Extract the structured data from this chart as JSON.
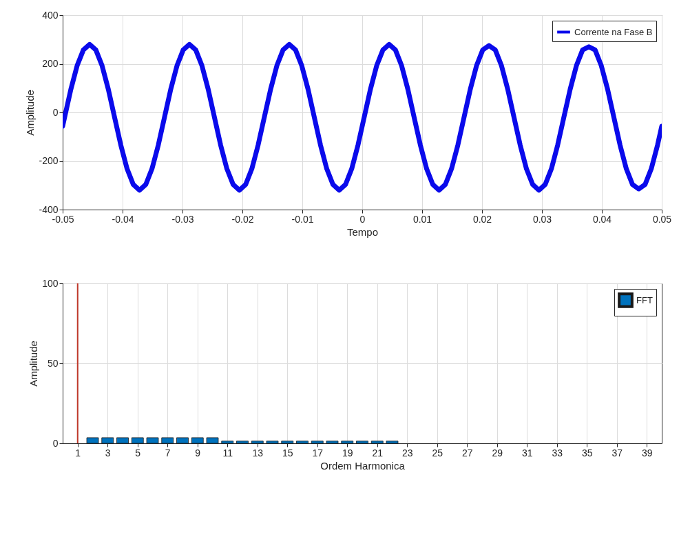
{
  "chart_data": [
    {
      "type": "line",
      "xlabel": "Tempo",
      "ylabel": "Amplitude",
      "xlim": [
        -0.05,
        0.05
      ],
      "ylim": [
        -400,
        400
      ],
      "xticks": [
        -0.05,
        -0.04,
        -0.03,
        -0.02,
        -0.01,
        0,
        0.01,
        0.02,
        0.03,
        0.04,
        0.05
      ],
      "yticks": [
        -400,
        -200,
        0,
        200,
        400
      ],
      "grid": true,
      "legend": "top right",
      "series": [
        {
          "name": "Corrente na Fase B",
          "color": "#0a0aeb",
          "x": [
            -0.05,
            -0.04967,
            -0.04863,
            -0.04759,
            -0.04654,
            -0.0455,
            -0.04446,
            -0.04342,
            -0.04238,
            -0.04134,
            -0.04029,
            -0.03925,
            -0.03821,
            -0.03717,
            -0.03613,
            -0.03509,
            -0.03404,
            -0.033,
            -0.03196,
            -0.03092,
            -0.02988,
            -0.02884,
            -0.02779,
            -0.02675,
            -0.02571,
            -0.02467,
            -0.02363,
            -0.02259,
            -0.02154,
            -0.0205,
            -0.01946,
            -0.01842,
            -0.01738,
            -0.01634,
            -0.01529,
            -0.01425,
            -0.01321,
            -0.01217,
            -0.01113,
            -0.01009,
            -0.00904,
            -0.008,
            -0.00696,
            -0.00592,
            -0.00488,
            -0.00384,
            -0.00279,
            -0.00175,
            -0.00071,
            0.00033,
            0.00137,
            0.00241,
            0.00346,
            0.0045,
            0.00554,
            0.00658,
            0.00762,
            0.00866,
            0.00971,
            0.01075,
            0.01179,
            0.01283,
            0.01387,
            0.01491,
            0.01596,
            0.017,
            0.01804,
            0.01908,
            0.02012,
            0.02116,
            0.02221,
            0.02325,
            0.02429,
            0.02533,
            0.02637,
            0.02741,
            0.02846,
            0.0295,
            0.03054,
            0.03158,
            0.03262,
            0.03366,
            0.03471,
            0.03575,
            0.03679,
            0.03783,
            0.03887,
            0.03991,
            0.04096,
            0.042,
            0.04304,
            0.04408,
            0.04512,
            0.04616,
            0.04721,
            0.04825,
            0.04929,
            0.05
          ],
          "values": [
            -57,
            -20,
            95,
            192,
            257,
            280,
            257,
            192,
            95,
            -20,
            -135,
            -232,
            -297,
            -320,
            -297,
            -232,
            -135,
            -20,
            95,
            192,
            257,
            280,
            257,
            192,
            95,
            -20,
            -135,
            -232,
            -297,
            -320,
            -297,
            -232,
            -135,
            -20,
            95,
            192,
            257,
            280,
            257,
            192,
            95,
            -20,
            -135,
            -232,
            -297,
            -320,
            -297,
            -232,
            -135,
            -20,
            95,
            192,
            257,
            280,
            257,
            192,
            95,
            -20,
            -135,
            -232,
            -297,
            -320,
            -297,
            -232,
            -135,
            -20,
            95,
            192,
            257,
            275,
            257,
            192,
            95,
            -20,
            -135,
            -232,
            -297,
            -320,
            -297,
            -232,
            -135,
            -20,
            95,
            192,
            257,
            270,
            257,
            192,
            95,
            -20,
            -135,
            -232,
            -297,
            -315,
            -297,
            -232,
            -135,
            -57
          ]
        }
      ]
    },
    {
      "type": "bar",
      "xlabel": "Ordem Harmonica",
      "ylabel": "Amplitude",
      "xlim": [
        0,
        40
      ],
      "ylim": [
        0,
        100
      ],
      "xticks": [
        1,
        3,
        5,
        7,
        9,
        11,
        13,
        15,
        17,
        19,
        21,
        23,
        25,
        27,
        29,
        31,
        33,
        35,
        37,
        39
      ],
      "yticks": [
        0,
        50,
        100
      ],
      "grid": true,
      "legend": "top right",
      "ref_lines": [
        {
          "axis": "x",
          "value": 1,
          "color": "#c0392b"
        }
      ],
      "series": [
        {
          "name": "FFT",
          "color": "#0072bd",
          "x": [
            2,
            3,
            4,
            5,
            6,
            7,
            8,
            9,
            10,
            11,
            12,
            13,
            14,
            15,
            16,
            17,
            18,
            19,
            20,
            21,
            22
          ],
          "values": [
            3.5,
            3.5,
            3.5,
            3.5,
            3.5,
            3.5,
            3.5,
            3.5,
            3.5,
            1.4,
            1.4,
            1.4,
            1.4,
            1.4,
            1.4,
            1.4,
            1.4,
            1.4,
            1.4,
            1.4,
            1.4
          ]
        }
      ]
    }
  ]
}
